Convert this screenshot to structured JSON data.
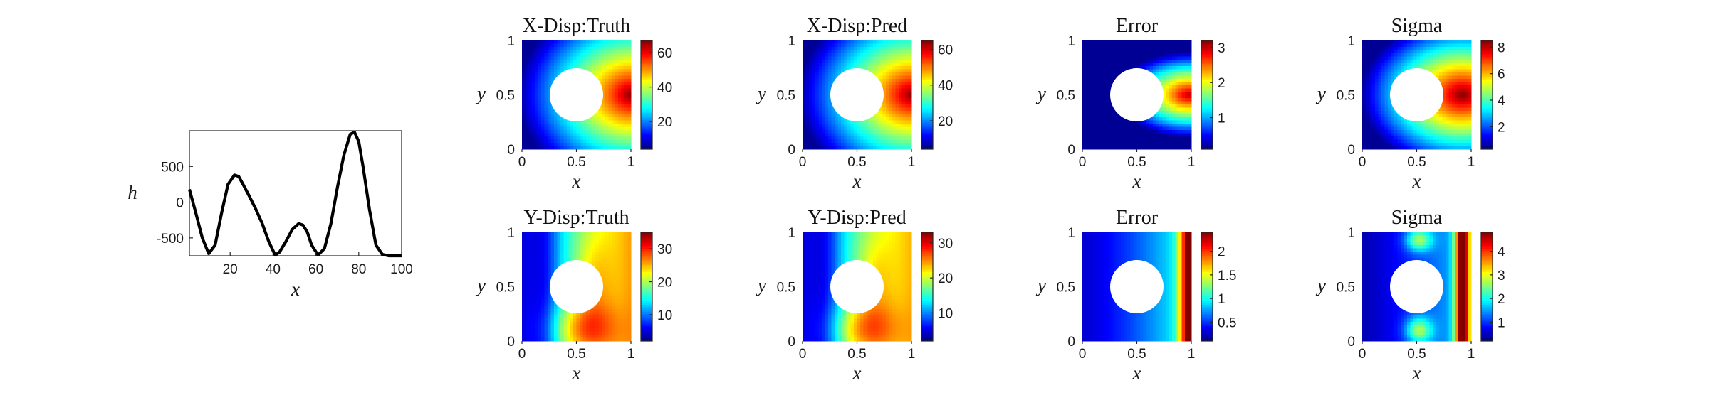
{
  "chart_data": [
    {
      "type": "line",
      "xlabel": "x",
      "ylabel": "h",
      "xlim": [
        1,
        100
      ],
      "ylim": [
        -750,
        1000
      ],
      "xticks": [
        "20",
        "40",
        "60",
        "80",
        "100"
      ],
      "yticks": [
        "500",
        "0",
        "-500"
      ],
      "series": [
        {
          "x": [
            1,
            4,
            7,
            10,
            13,
            16,
            19,
            22,
            24,
            26,
            29,
            32,
            35,
            38,
            41,
            43,
            46,
            49,
            52,
            54,
            56,
            58,
            61,
            64,
            67,
            70,
            73,
            76,
            78,
            80,
            82,
            85,
            88,
            91,
            94,
            97,
            100
          ],
          "values": [
            180,
            -150,
            -500,
            -720,
            -600,
            -150,
            250,
            380,
            360,
            250,
            80,
            -100,
            -300,
            -550,
            -740,
            -700,
            -550,
            -380,
            -300,
            -320,
            -420,
            -600,
            -740,
            -650,
            -300,
            200,
            650,
            950,
            980,
            850,
            500,
            -100,
            -600,
            -730,
            -750,
            -750,
            -750
          ]
        }
      ]
    },
    {
      "type": "heatmap",
      "title": "X-Disp:Truth",
      "xlabel": "x",
      "ylabel": "y",
      "xticks": [
        "0",
        "0.5",
        "1"
      ],
      "yticks": [
        "1",
        "0.5",
        "0"
      ],
      "colorbar_ticks": [
        "20",
        "40",
        "60"
      ],
      "colorbar_range": [
        4,
        67
      ],
      "field": "xdisp",
      "peak": 1.0
    },
    {
      "type": "heatmap",
      "title": "X-Disp:Pred",
      "xlabel": "x",
      "ylabel": "y",
      "xticks": [
        "0",
        "0.5",
        "1"
      ],
      "yticks": [
        "1",
        "0.5",
        "0"
      ],
      "colorbar_ticks": [
        "20",
        "40",
        "60"
      ],
      "colorbar_range": [
        4,
        65
      ],
      "field": "xdisp",
      "peak": 1.0
    },
    {
      "type": "heatmap",
      "title": "Error",
      "xlabel": "x",
      "ylabel": "y",
      "xticks": [
        "0",
        "0.5",
        "1"
      ],
      "yticks": [
        "1",
        "0.5",
        "0"
      ],
      "colorbar_ticks": [
        "1",
        "2",
        "3"
      ],
      "colorbar_range": [
        0.1,
        3.2
      ],
      "field": "xerr",
      "peak": 1.0
    },
    {
      "type": "heatmap",
      "title": "Sigma",
      "xlabel": "x",
      "ylabel": "y",
      "xticks": [
        "0",
        "0.5",
        "1"
      ],
      "yticks": [
        "1",
        "0.5",
        "0"
      ],
      "colorbar_ticks": [
        "2",
        "4",
        "6",
        "8"
      ],
      "colorbar_range": [
        0.3,
        8.5
      ],
      "field": "xsigma",
      "peak": 1.0
    },
    {
      "type": "heatmap",
      "title": "Y-Disp:Truth",
      "xlabel": "x",
      "ylabel": "y",
      "xticks": [
        "0",
        "0.5",
        "1"
      ],
      "yticks": [
        "1",
        "0.5",
        "0"
      ],
      "colorbar_ticks": [
        "10",
        "20",
        "30"
      ],
      "colorbar_range": [
        2,
        35
      ],
      "field": "ydisp",
      "peak": 1.0
    },
    {
      "type": "heatmap",
      "title": "Y-Disp:Pred",
      "xlabel": "x",
      "ylabel": "y",
      "xticks": [
        "0",
        "0.5",
        "1"
      ],
      "yticks": [
        "1",
        "0.5",
        "0"
      ],
      "colorbar_ticks": [
        "10",
        "20",
        "30"
      ],
      "colorbar_range": [
        2,
        33
      ],
      "field": "ydisp",
      "peak": 0.97
    },
    {
      "type": "heatmap",
      "title": "Error",
      "xlabel": "x",
      "ylabel": "y",
      "xticks": [
        "0",
        "0.5",
        "1"
      ],
      "yticks": [
        "1",
        "0.5",
        "0"
      ],
      "colorbar_ticks": [
        "2",
        "1.5",
        "1",
        "0.5"
      ],
      "colorbar_values": [
        2,
        1.5,
        1,
        0.5
      ],
      "colorbar_range": [
        0.1,
        2.4
      ],
      "field": "yerr",
      "peak": 1.0
    },
    {
      "type": "heatmap",
      "title": "Sigma",
      "xlabel": "x",
      "ylabel": "y",
      "xticks": [
        "0",
        "0.5",
        "1"
      ],
      "yticks": [
        "1",
        "0.5",
        "0"
      ],
      "colorbar_ticks": [
        "4",
        "3",
        "2",
        "1"
      ],
      "colorbar_values": [
        4,
        3,
        2,
        1
      ],
      "colorbar_range": [
        0.2,
        4.8
      ],
      "field": "ysigma",
      "peak": 1.0
    }
  ]
}
